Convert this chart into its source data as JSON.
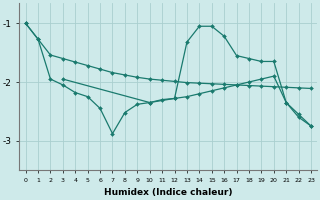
{
  "background_color": "#ceeaea",
  "grid_color": "#aacfcf",
  "line_color": "#1a7a6e",
  "xlabel": "Humidex (Indice chaleur)",
  "xlim": [
    -0.5,
    23.5
  ],
  "ylim": [
    -3.5,
    -0.65
  ],
  "yticks": [
    -3,
    -2,
    -1
  ],
  "xticks": [
    0,
    1,
    2,
    3,
    4,
    5,
    6,
    7,
    8,
    9,
    10,
    11,
    12,
    13,
    14,
    15,
    16,
    17,
    18,
    19,
    20,
    21,
    22,
    23
  ],
  "series1_x": [
    0,
    1,
    2,
    3,
    4,
    5,
    6,
    7,
    8,
    9,
    10,
    11,
    12,
    13,
    14,
    15,
    16,
    17,
    18,
    19,
    20,
    21,
    22,
    23
  ],
  "series1_y": [
    -1.0,
    -1.27,
    -1.54,
    -1.6,
    -1.66,
    -1.72,
    -1.78,
    -1.84,
    -1.88,
    -1.92,
    -1.95,
    -1.97,
    -1.99,
    -2.01,
    -2.02,
    -2.03,
    -2.04,
    -2.05,
    -2.06,
    -2.07,
    -2.08,
    -2.09,
    -2.1,
    -2.11
  ],
  "series2_x": [
    0,
    1,
    2,
    3,
    4,
    5,
    6,
    7,
    8,
    9,
    10,
    11,
    12,
    13,
    14,
    15,
    16,
    17,
    18,
    19,
    20,
    21,
    22,
    23
  ],
  "series2_y": [
    -1.0,
    -1.27,
    -1.95,
    -2.05,
    -2.18,
    -2.25,
    -2.45,
    -2.88,
    -2.52,
    -2.38,
    -2.35,
    -2.3,
    -2.28,
    -2.25,
    -2.2,
    -2.15,
    -2.1,
    -2.05,
    -2.0,
    -1.95,
    -1.9,
    -2.35,
    -2.6,
    -2.75
  ],
  "series3_x": [
    3,
    10,
    12,
    13,
    14,
    15,
    16,
    17,
    18,
    19,
    20,
    21,
    22,
    23
  ],
  "series3_y": [
    -1.95,
    -2.35,
    -2.28,
    -1.32,
    -1.05,
    -1.05,
    -1.22,
    -1.55,
    -1.6,
    -1.65,
    -1.65,
    -2.35,
    -2.55,
    -2.75
  ]
}
